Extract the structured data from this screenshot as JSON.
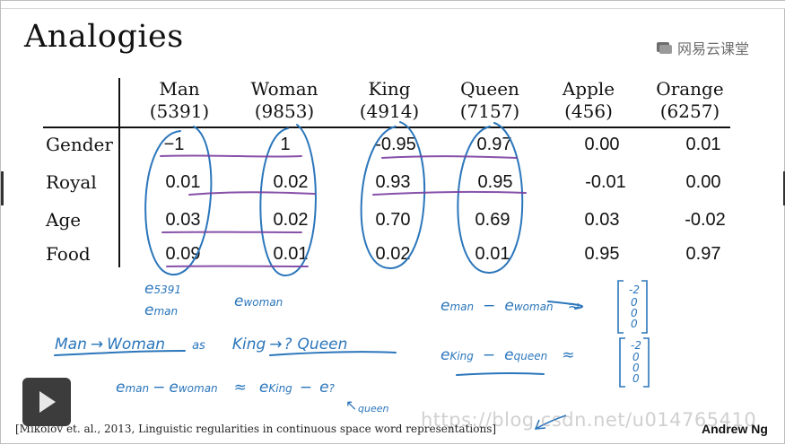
{
  "title": "Analogies",
  "logo": {
    "text": "网易云课堂",
    "icon": "netease-cloud-icon"
  },
  "columns": [
    {
      "word": "Man",
      "index": "(5391)"
    },
    {
      "word": "Woman",
      "index": "(9853)"
    },
    {
      "word": "King",
      "index": "(4914)"
    },
    {
      "word": "Queen",
      "index": "(7157)"
    },
    {
      "word": "Apple",
      "index": "(456)"
    },
    {
      "word": "Orange",
      "index": "(6257)"
    }
  ],
  "rows": [
    {
      "label": "Gender",
      "values": [
        "−1",
        "1",
        "-0.95",
        "0.97",
        "0.00",
        "0.01"
      ]
    },
    {
      "label": "Royal",
      "values": [
        "0.01",
        "0.02",
        "0.93",
        "0.95",
        "-0.01",
        "0.00"
      ]
    },
    {
      "label": "Age",
      "values": [
        "0.03",
        "0.02",
        "0.70",
        "0.69",
        "0.03",
        "-0.02"
      ]
    },
    {
      "label": "Food",
      "values": [
        "0.09",
        "0.01",
        "0.02",
        "0.01",
        "0.95",
        "0.97"
      ]
    }
  ],
  "handwriting": {
    "e5391": "e",
    "e5391_sub": "5391",
    "eman": "e",
    "eman_sub": "man",
    "ewoman": "e",
    "ewoman_sub": "woman",
    "eq1_lhs": "e",
    "eq1_lhs_sub": "man",
    "eq1_minus": "−",
    "eq1_rhs": "e",
    "eq1_rhs_sub": "woman",
    "eq1_approx": "≈",
    "vec1": [
      "-2",
      "0",
      "0",
      "0"
    ],
    "analogy_man": "Man",
    "analogy_woman": "Woman",
    "analogy_as": "as",
    "analogy_king": "King",
    "analogy_q": "?",
    "analogy_queen": "Queen",
    "eq2_lhs": "e",
    "eq2_lhs_sub": "King",
    "eq2_minus": "−",
    "eq2_rhs": "e",
    "eq2_rhs_sub": "queen",
    "eq2_approx": "≈",
    "vec2": [
      "-2",
      "0",
      "0",
      "0"
    ],
    "eq3_a": "e",
    "eq3_a_sub": "man",
    "eq3_minus": "−",
    "eq3_b": "e",
    "eq3_b_sub": "woman",
    "eq3_approx": "≈",
    "eq3_c": "e",
    "eq3_c_sub": "King",
    "eq3_minus2": "−",
    "eq3_d": "e",
    "eq3_d_sub": "?",
    "eq3_queen": "queen"
  },
  "citation": "[Mikolov et. al., 2013, Linguistic regularities in continuous space word representations]",
  "author": "Andrew Ng",
  "watermark": "https://blog.csdn.net/u014765410",
  "colors": {
    "ink": "#2b76bb",
    "highlight": "#7b3fa0"
  }
}
